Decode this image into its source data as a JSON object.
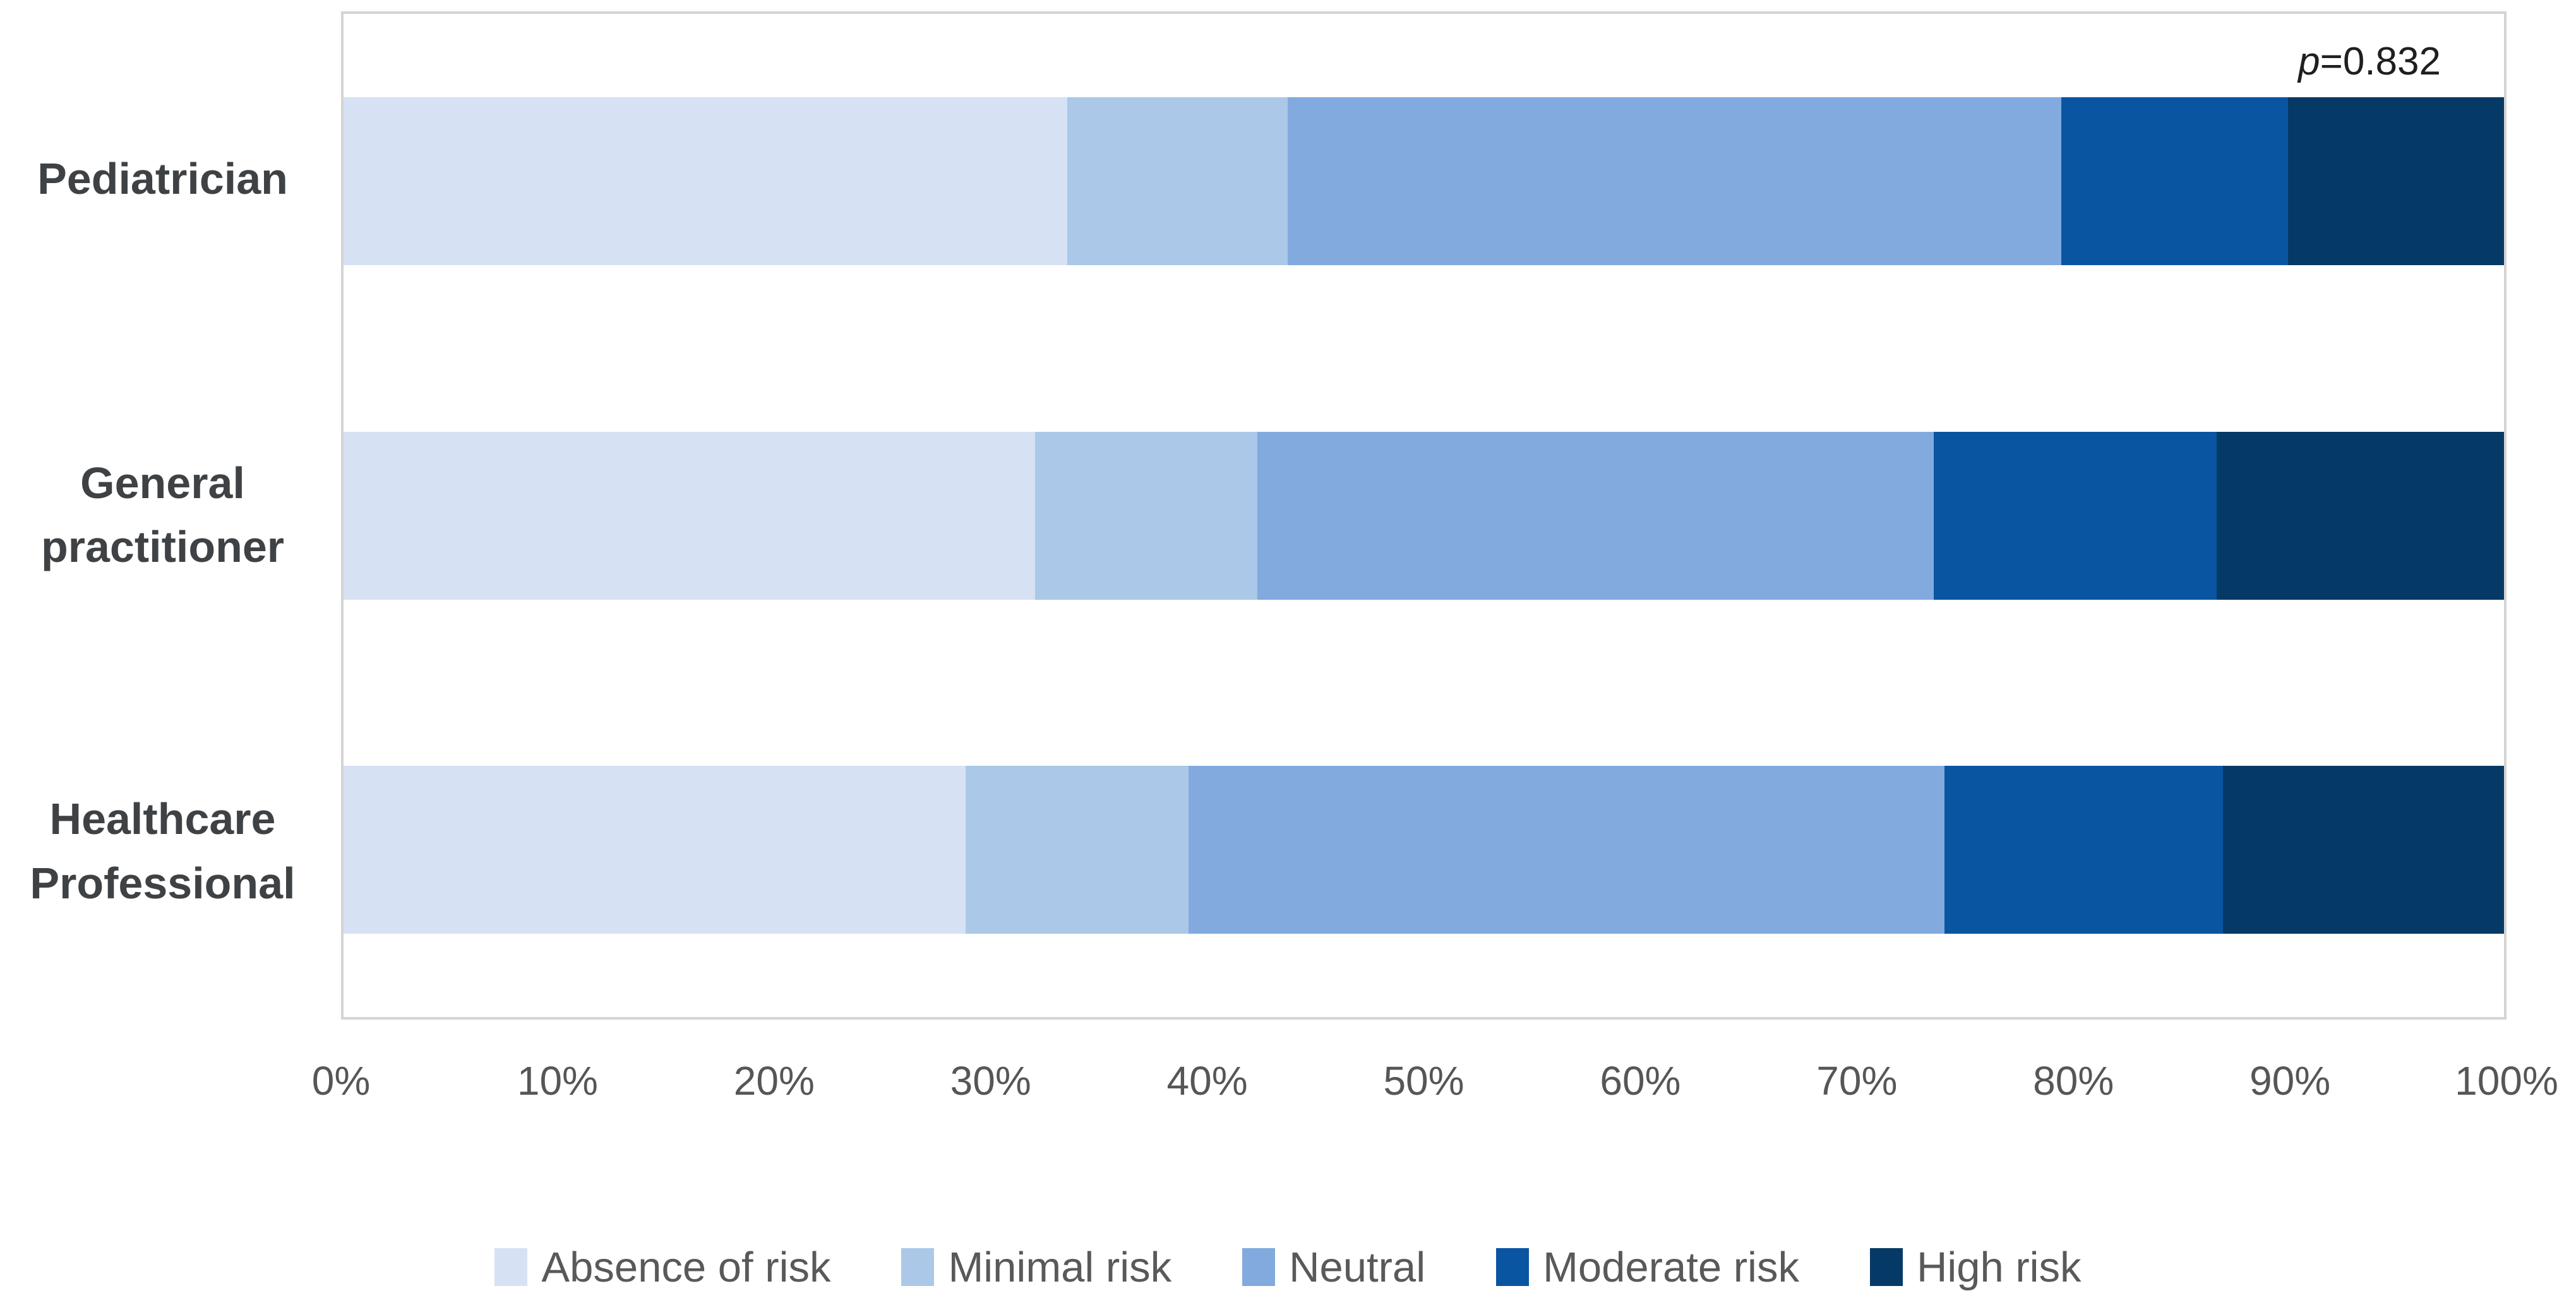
{
  "chart_data": {
    "type": "bar",
    "orientation": "horizontal",
    "stacked": true,
    "unit": "percent",
    "title": "",
    "xlabel": "",
    "ylabel": "",
    "xlim": [
      0,
      100
    ],
    "gridlines": false,
    "legend_position": "bottom",
    "categories": [
      "Pediatrician",
      "General practitioner",
      "Healthcare Professional"
    ],
    "series": [
      {
        "name": "Absence of risk",
        "color": "#d6e2f3",
        "values": [
          33.5,
          32.0,
          28.8
        ]
      },
      {
        "name": "Minimal risk",
        "color": "#abc8e8",
        "values": [
          10.2,
          10.3,
          10.3
        ]
      },
      {
        "name": "Neutral",
        "color": "#82aade",
        "values": [
          35.8,
          31.3,
          35.0
        ]
      },
      {
        "name": "Moderate risk",
        "color": "#0a55a2",
        "values": [
          10.5,
          13.1,
          12.9
        ]
      },
      {
        "name": "High risk",
        "color": "#063a66",
        "values": [
          10.0,
          13.3,
          13.0
        ]
      }
    ],
    "x_ticks": [
      "0%",
      "10%",
      "20%",
      "30%",
      "40%",
      "50%",
      "60%",
      "70%",
      "80%",
      "90%",
      "100%"
    ],
    "annotation": "p=0.832"
  },
  "annotation": {
    "italic_part": "p",
    "rest_part": "=0.832"
  }
}
